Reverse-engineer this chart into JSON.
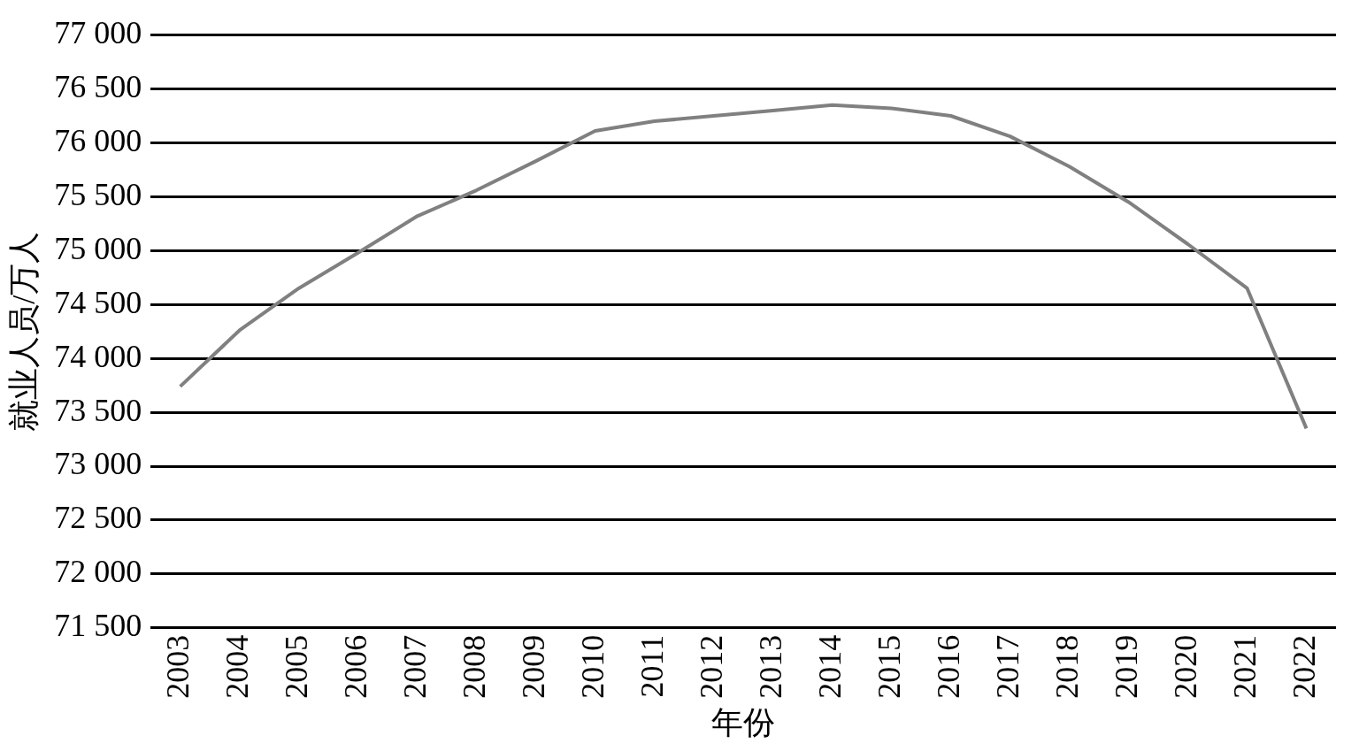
{
  "chart_data": {
    "type": "line",
    "xlabel": "年份",
    "ylabel": "就业人员/万人",
    "categories": [
      "2003",
      "2004",
      "2005",
      "2006",
      "2007",
      "2008",
      "2009",
      "2010",
      "2011",
      "2012",
      "2013",
      "2014",
      "2015",
      "2016",
      "2017",
      "2018",
      "2019",
      "2020",
      "2021",
      "2022"
    ],
    "series": [
      {
        "color": "#808080",
        "values": [
          73740,
          74260,
          74650,
          74980,
          75320,
          75560,
          75830,
          76110,
          76200,
          76250,
          76300,
          76350,
          76320,
          76250,
          76060,
          75780,
          75450,
          75060,
          74650,
          73350
        ]
      }
    ],
    "ylim": [
      71500,
      77000
    ],
    "yticks": [
      {
        "value": 71500,
        "label": "71 500"
      },
      {
        "value": 72000,
        "label": "72 000"
      },
      {
        "value": 72500,
        "label": "72 500"
      },
      {
        "value": 73000,
        "label": "73 000"
      },
      {
        "value": 73500,
        "label": "73 500"
      },
      {
        "value": 74000,
        "label": "74 000"
      },
      {
        "value": 74500,
        "label": "74 500"
      },
      {
        "value": 75000,
        "label": "75 000"
      },
      {
        "value": 75500,
        "label": "75 500"
      },
      {
        "value": 76000,
        "label": "76 000"
      },
      {
        "value": 76500,
        "label": "76 500"
      },
      {
        "value": 77000,
        "label": "77 000"
      }
    ],
    "grid": "y",
    "legend": false,
    "marker": "none",
    "line_style": "solid"
  }
}
